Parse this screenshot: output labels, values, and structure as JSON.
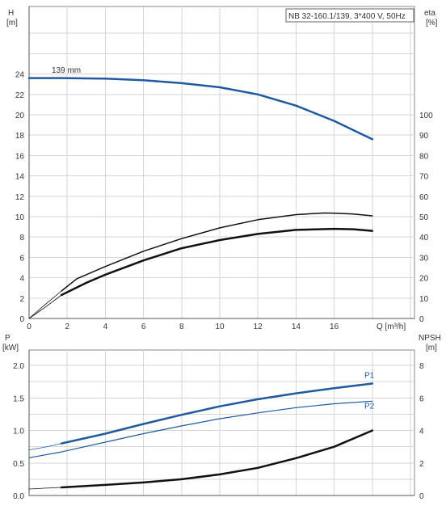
{
  "chart_data": [
    {
      "type": "line",
      "title": "NB 32-160.1/139, 3*400 V, 50Hz",
      "ylabel_left": [
        "H",
        "[m]"
      ],
      "ylabel_right": [
        "eta",
        "[%]"
      ],
      "xlabel": "Q [m³/h]",
      "xlim": [
        0,
        18
      ],
      "ylim_left": [
        0,
        28
      ],
      "ylim_right": [
        0,
        120
      ],
      "x_ticks": [
        "0",
        "2",
        "4",
        "6",
        "8",
        "10",
        "12",
        "14",
        "16"
      ],
      "y_ticks_left": [
        "0",
        "2",
        "4",
        "6",
        "8",
        "10",
        "12",
        "14",
        "16",
        "18",
        "20",
        "22",
        "24"
      ],
      "y_ticks_right": [
        "0",
        "10",
        "20",
        "30",
        "40",
        "50",
        "60",
        "70",
        "80",
        "90",
        "100"
      ],
      "grid": true,
      "annotations": [
        {
          "text": "139 mm"
        }
      ],
      "series": [
        {
          "axis": "left",
          "color": "#1f5aa0",
          "width": 2.5,
          "x": [
            0,
            1.7,
            4,
            6,
            8,
            10,
            12,
            14,
            16,
            18
          ],
          "y": [
            23.6,
            23.6,
            23.55,
            23.4,
            23.1,
            22.7,
            22.0,
            20.9,
            19.4,
            17.6
          ]
        },
        {
          "axis": "right",
          "color": "#111111",
          "width": 1.5,
          "x": [
            1.7,
            2.5,
            4,
            6,
            8,
            10,
            12,
            14,
            15.5,
            16,
            17,
            18
          ],
          "y": [
            13.5,
            19.5,
            25.5,
            33,
            39.2,
            44.5,
            48.5,
            51,
            51.8,
            51.7,
            51.3,
            50.4
          ]
        },
        {
          "axis": "right",
          "color": "#111111",
          "width": 0.8,
          "x": [
            0,
            0.8,
            1.7
          ],
          "y": [
            0,
            6.5,
            13.5
          ]
        },
        {
          "axis": "right",
          "color": "#111111",
          "width": 2.5,
          "x": [
            1.7,
            3,
            4,
            6,
            8,
            10,
            12,
            14,
            16,
            17,
            18
          ],
          "y": [
            11.5,
            17.5,
            21.5,
            28.5,
            34.5,
            38.5,
            41.5,
            43.5,
            44,
            43.8,
            43
          ]
        },
        {
          "axis": "right",
          "color": "#111111",
          "width": 0.8,
          "x": [
            0,
            0.8,
            1.7
          ],
          "y": [
            0,
            5.2,
            11.5
          ]
        }
      ]
    },
    {
      "type": "line",
      "ylabel_left": [
        "P",
        "[kW]"
      ],
      "ylabel_right": [
        "NPSH",
        "[m]"
      ],
      "xlim": [
        0,
        18
      ],
      "ylim_left": [
        0,
        2.0
      ],
      "ylim_right": [
        0,
        8
      ],
      "y_ticks_left": [
        "0.0",
        "0.5",
        "1.0",
        "1.5",
        "2.0"
      ],
      "y_ticks_right": [
        "0",
        "2",
        "4",
        "6",
        "8"
      ],
      "grid": true,
      "series": [
        {
          "name": "P1",
          "axis": "left",
          "color": "#1f5aa0",
          "width": 2.5,
          "x": [
            1.7,
            4,
            6,
            8,
            10,
            12,
            14,
            16,
            18
          ],
          "y": [
            0.8,
            0.95,
            1.1,
            1.24,
            1.37,
            1.48,
            1.57,
            1.65,
            1.72
          ]
        },
        {
          "axis": "left",
          "color": "#1f5aa0",
          "width": 0.8,
          "x": [
            0,
            0.8,
            1.7
          ],
          "y": [
            0.7,
            0.74,
            0.8
          ]
        },
        {
          "name": "P2",
          "axis": "left",
          "color": "#1f5aa0",
          "width": 1.2,
          "x": [
            0,
            1.7,
            4,
            6,
            8,
            10,
            12,
            14,
            16,
            18
          ],
          "y": [
            0.58,
            0.67,
            0.82,
            0.95,
            1.07,
            1.18,
            1.27,
            1.35,
            1.41,
            1.45
          ]
        },
        {
          "axis": "right",
          "color": "#111111",
          "width": 2.5,
          "x": [
            1.7,
            4,
            6,
            8,
            10,
            12,
            14,
            16,
            18
          ],
          "y": [
            0.5,
            0.65,
            0.8,
            1.0,
            1.3,
            1.7,
            2.3,
            3.0,
            4.0
          ]
        },
        {
          "axis": "right",
          "color": "#111111",
          "width": 0.8,
          "x": [
            0,
            0.8,
            1.7
          ],
          "y": [
            0.4,
            0.45,
            0.5
          ]
        }
      ]
    }
  ]
}
